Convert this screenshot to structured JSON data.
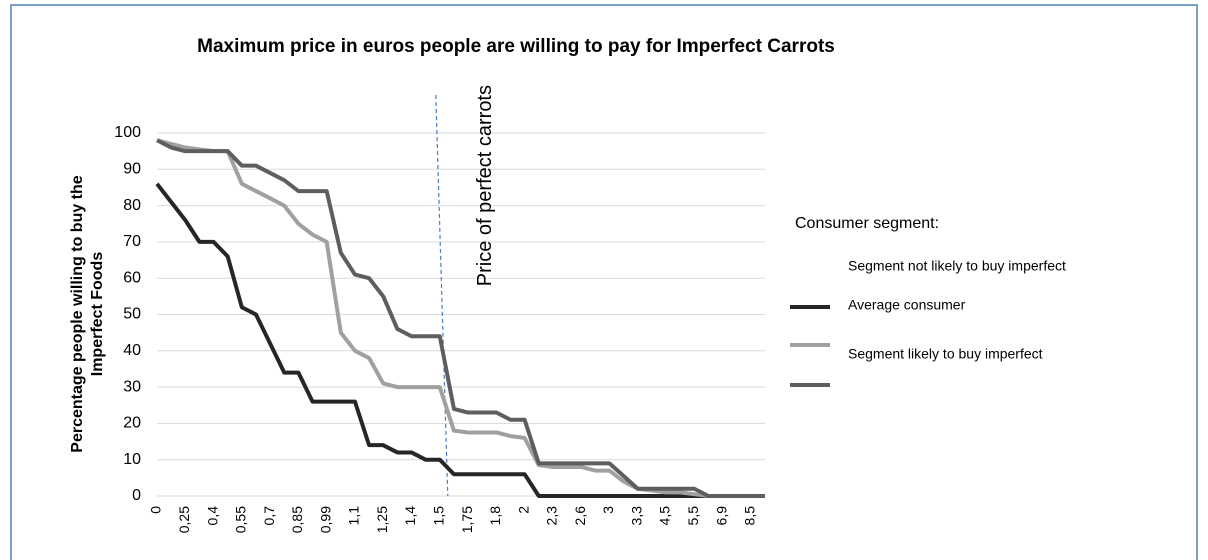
{
  "chart_data": {
    "type": "line",
    "title": "Maximum price in euros people are willing to pay for Imperfect Carrots",
    "y_label": [
      "Percentage people willing to buy the",
      "Imperfect Foods"
    ],
    "categories": [
      "0",
      null,
      "0,25",
      null,
      "0,4",
      null,
      "0,55",
      null,
      "0,7",
      null,
      "0,85",
      null,
      "0,99",
      null,
      "1,1",
      null,
      "1,25",
      null,
      "1,4",
      null,
      "1,5",
      null,
      "1,75",
      null,
      "1,8",
      null,
      "2",
      null,
      "2,3",
      null,
      "2,6",
      null,
      "3",
      null,
      "3,3",
      null,
      "4,5",
      null,
      "5,5",
      null,
      "6,9",
      null,
      "8,5",
      null
    ],
    "series": [
      {
        "name": "Segment not likely to buy imperfect",
        "color": "#262626",
        "values": [
          86,
          81,
          76,
          70,
          70,
          66,
          52,
          50,
          42,
          34,
          34,
          26,
          26,
          26,
          26,
          14,
          14,
          12,
          12,
          10,
          10,
          6,
          6,
          6,
          6,
          6,
          6,
          0,
          0,
          0,
          0,
          0,
          0,
          0,
          0,
          0,
          0,
          0,
          0,
          0,
          0,
          0,
          0,
          0
        ]
      },
      {
        "name": "Average consumer",
        "color": "#a0a0a0",
        "values": [
          98,
          97,
          96,
          95.5,
          95,
          95,
          86,
          84,
          82,
          80,
          75,
          72,
          70,
          45,
          40,
          38,
          31,
          30,
          30,
          30,
          30,
          18,
          17.5,
          17.5,
          17.5,
          16.5,
          16,
          8.5,
          8,
          8,
          8,
          7,
          7,
          4,
          2,
          1.5,
          1,
          1,
          0.5,
          0,
          0,
          0,
          0,
          0
        ]
      },
      {
        "name": "Segment likely to buy imperfect",
        "color": "#5e5e5e",
        "values": [
          98,
          96,
          95,
          95,
          95,
          95,
          91,
          91,
          89,
          87,
          84,
          84,
          84,
          67,
          61,
          60,
          55,
          46,
          44,
          44,
          44,
          24,
          23,
          23,
          23,
          21,
          21,
          9,
          9,
          9,
          9,
          9,
          9,
          5.5,
          2,
          2,
          2,
          2,
          2,
          0,
          0,
          0,
          0,
          0
        ]
      }
    ],
    "ylim": [
      0,
      100
    ],
    "yticks": [
      0,
      10,
      20,
      30,
      40,
      50,
      60,
      70,
      80,
      90,
      100
    ],
    "grid": true,
    "legend_title": "Consumer segment:",
    "legend_position": "right",
    "reference_line": {
      "label": "Price of perfect carrots",
      "category": "1,5",
      "color": "#4a7ebb"
    }
  }
}
